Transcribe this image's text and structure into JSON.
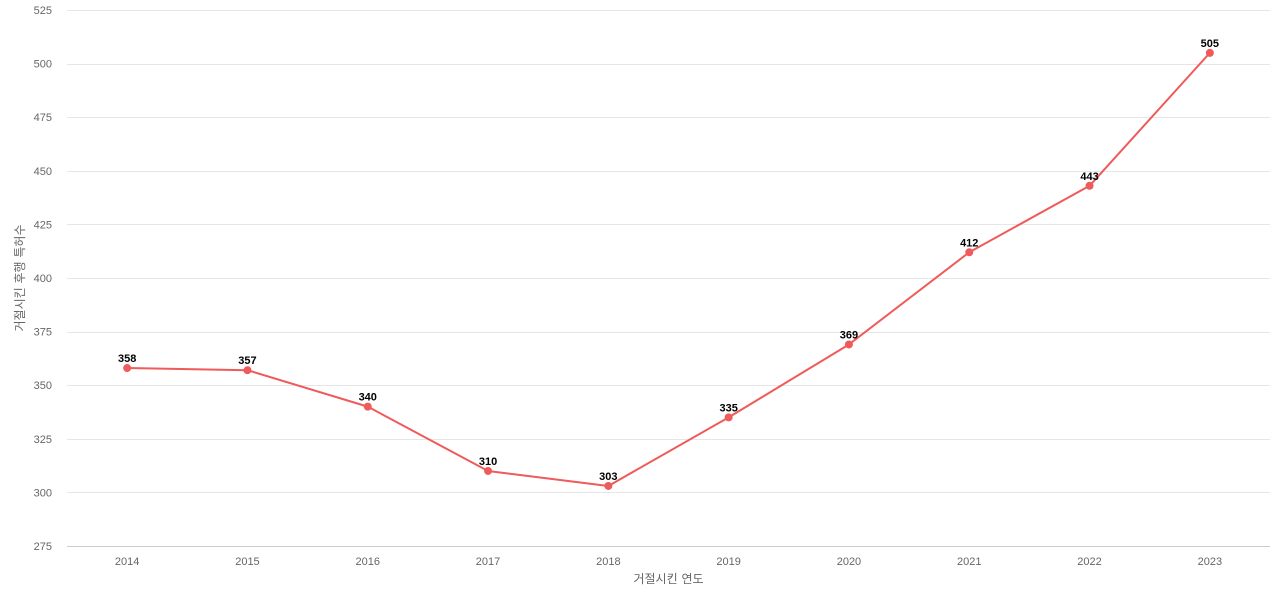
{
  "chart_data": {
    "type": "line",
    "xlabel": "거절시킨 연도",
    "ylabel": "거절시킨 후행 특허수",
    "categories": [
      "2014",
      "2015",
      "2016",
      "2017",
      "2018",
      "2019",
      "2020",
      "2021",
      "2022",
      "2023"
    ],
    "series": [
      {
        "values": [
          358,
          357,
          340,
          310,
          303,
          335,
          369,
          412,
          443,
          505
        ]
      }
    ],
    "ylim": [
      275,
      525
    ],
    "yticks": [
      275,
      300,
      325,
      350,
      375,
      400,
      425,
      450,
      475,
      500,
      525
    ],
    "grid": true,
    "legend": "none",
    "data_labels": true,
    "colors": {
      "line": "#ef5a5a",
      "grid": "#e6e6e6",
      "axis_text": "#666666"
    }
  }
}
